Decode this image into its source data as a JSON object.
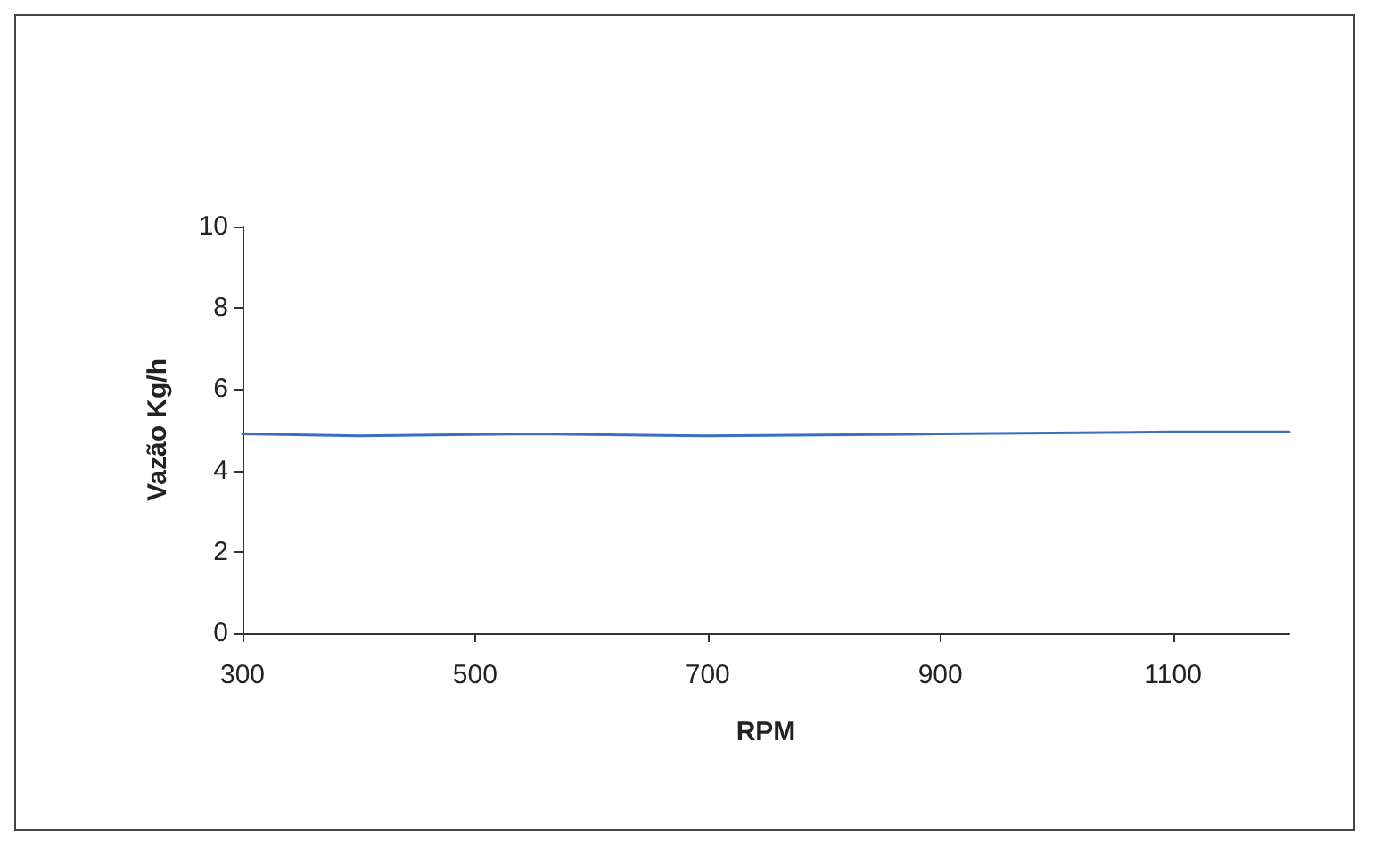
{
  "chart_data": {
    "type": "line",
    "xlabel": "RPM",
    "ylabel": "Vazão Kg/h",
    "x": [
      300,
      400,
      550,
      700,
      900,
      1100,
      1200
    ],
    "series": [
      {
        "color": "#3a6fc4",
        "values": [
          4.9,
          4.85,
          4.9,
          4.85,
          4.9,
          4.95,
          4.95
        ]
      }
    ],
    "xlim": [
      300,
      1200
    ],
    "xticks": [
      300,
      500,
      700,
      900,
      1100
    ],
    "ylim": [
      0,
      10
    ],
    "yticks": [
      0,
      2,
      4,
      6,
      8,
      10
    ],
    "marker": "none",
    "line_style": "solid"
  }
}
